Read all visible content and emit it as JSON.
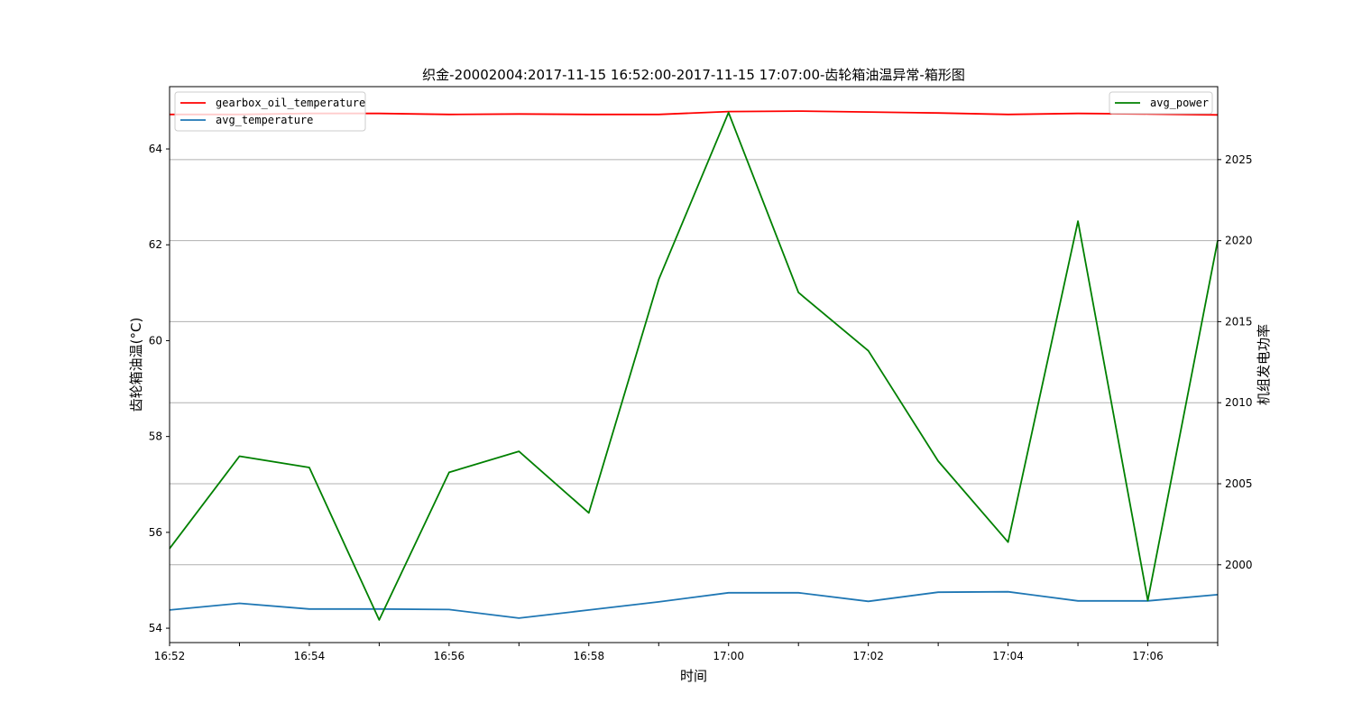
{
  "chart_data": {
    "type": "line",
    "title": "织金-20002004:2017-11-15 16:52:00-2017-11-15 17:07:00-齿轮箱油温异常-箱形图",
    "xlabel": "时间",
    "ylabel_left": "齿轮箱油温(°C)",
    "ylabel_right": "机组发电功率",
    "x": [
      "16:52",
      "16:53",
      "16:54",
      "16:55",
      "16:56",
      "16:57",
      "16:58",
      "16:59",
      "17:00",
      "17:01",
      "17:02",
      "17:03",
      "17:04",
      "17:05",
      "17:06",
      "17:07"
    ],
    "x_tick_labels": [
      "16:52",
      "16:54",
      "16:56",
      "16:58",
      "17:00",
      "17:02",
      "17:04",
      "17:06"
    ],
    "y_left_ticks": [
      "54",
      "56",
      "58",
      "60",
      "62",
      "64"
    ],
    "y_right_ticks": [
      "2000",
      "2005",
      "2010",
      "2015",
      "2020",
      "2025"
    ],
    "ylim_left": [
      53.7,
      65.3
    ],
    "ylim_right": [
      1995.2,
      2029.5
    ],
    "grid": "horizontal lines at right-axis ticks",
    "series": [
      {
        "name": "gearbox_oil_temperature",
        "axis": "left",
        "color": "#ff0000",
        "values": [
          64.72,
          64.72,
          64.74,
          64.74,
          64.72,
          64.73,
          64.72,
          64.72,
          64.78,
          64.79,
          64.77,
          64.75,
          64.72,
          64.74,
          64.73,
          64.71
        ]
      },
      {
        "name": "avg_temperature",
        "axis": "left",
        "color": "#1f77b4",
        "values": [
          54.38,
          54.52,
          54.4,
          54.4,
          54.39,
          54.21,
          54.38,
          54.55,
          54.74,
          54.74,
          54.56,
          54.75,
          54.76,
          54.57,
          54.57,
          54.7
        ]
      },
      {
        "name": "avg_power",
        "axis": "right",
        "color": "#008000",
        "values": [
          2001.0,
          2006.7,
          2006.0,
          1996.6,
          2005.7,
          2007.0,
          2003.2,
          2017.6,
          2027.9,
          2016.8,
          2013.2,
          2006.4,
          2001.4,
          2021.2,
          1997.8,
          2020.0
        ]
      }
    ],
    "legend_left": {
      "placement": "top-left",
      "entries": [
        "gearbox_oil_temperature",
        "avg_temperature"
      ]
    },
    "legend_right": {
      "placement": "top-right",
      "entries": [
        "avg_power"
      ]
    }
  }
}
